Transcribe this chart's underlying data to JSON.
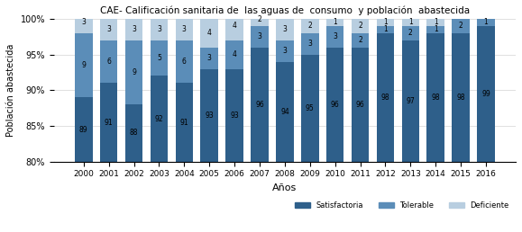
{
  "years": [
    2000,
    2001,
    2002,
    2003,
    2004,
    2005,
    2006,
    2007,
    2008,
    2009,
    2010,
    2011,
    2012,
    2013,
    2014,
    2015,
    2016
  ],
  "satisfactoria": [
    89,
    91,
    88,
    92,
    91,
    93,
    93,
    96,
    94,
    95,
    96,
    96,
    98,
    97,
    98,
    98,
    99
  ],
  "tolerable": [
    9,
    6,
    9,
    5,
    6,
    3,
    4,
    3,
    3,
    3,
    3,
    2,
    1,
    2,
    1,
    2,
    1
  ],
  "deficiente": [
    3,
    3,
    3,
    3,
    3,
    4,
    4,
    2,
    3,
    2,
    1,
    2,
    1,
    1,
    1,
    0,
    0
  ],
  "color_satisfactoria": "#2e5f8a",
  "color_tolerable": "#5b8db8",
  "color_deficiente": "#b8cee0",
  "title": "CAE- Calificación sanitaria de  las aguas de  consumo  y población  abastecida",
  "xlabel": "Años",
  "ylabel": "Población abastecida",
  "ylim_min": 80,
  "ylim_max": 100,
  "yticks": [
    80,
    85,
    90,
    95,
    100
  ],
  "ytick_labels": [
    "80%",
    "85%",
    "90%",
    "95%",
    "100%"
  ],
  "legend_satisfactoria": "Satisfactoria",
  "legend_tolerable": "Tolerable",
  "legend_deficiente": "Deficiente",
  "bar_width": 0.7,
  "fontsize_label": 5.5
}
